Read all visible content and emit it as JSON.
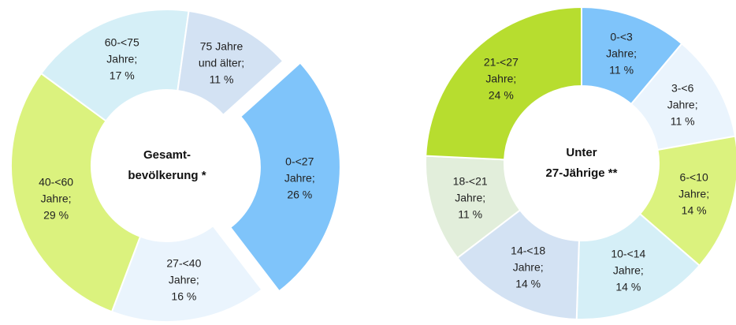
{
  "chart_data": [
    {
      "type": "donut",
      "title": "Gesamt-\nbevölkerung *",
      "categories": [
        "0-<27\nJahre;",
        "27-<40\nJahre;",
        "40-<60\nJahre;",
        "60-<75\nJahre;",
        "75 Jahre\nund älter;"
      ],
      "values": [
        26,
        16,
        29,
        17,
        11
      ],
      "value_labels": [
        "26 %",
        "16 %",
        "29 %",
        "17 %",
        "11 %"
      ],
      "colors": [
        "#7fc4fa",
        "#eaf4fd",
        "#dbf27e",
        "#d5eff7",
        "#d3e2f3"
      ],
      "exploded": [
        true,
        false,
        false,
        false,
        false
      ]
    },
    {
      "type": "donut",
      "title": "Unter\n27-Jährige **",
      "categories": [
        "0-<3\nJahre;",
        "3-<6\nJahre;",
        "6-<10\nJahre;",
        "10-<14\nJahre;",
        "14-<18\nJahre;",
        "18-<21\nJahre;",
        "21-<27\nJahre;"
      ],
      "values": [
        11,
        11,
        14,
        14,
        14,
        11,
        24
      ],
      "value_labels": [
        "11 %",
        "11 %",
        "14 %",
        "14 %",
        "14 %",
        "11 %",
        "24 %"
      ],
      "colors": [
        "#7fc4fa",
        "#eaf4fd",
        "#dbf27e",
        "#d5eff7",
        "#d3e2f3",
        "#e2eedb",
        "#b7dd2f"
      ],
      "exploded": [
        false,
        false,
        false,
        false,
        false,
        false,
        false
      ]
    }
  ]
}
